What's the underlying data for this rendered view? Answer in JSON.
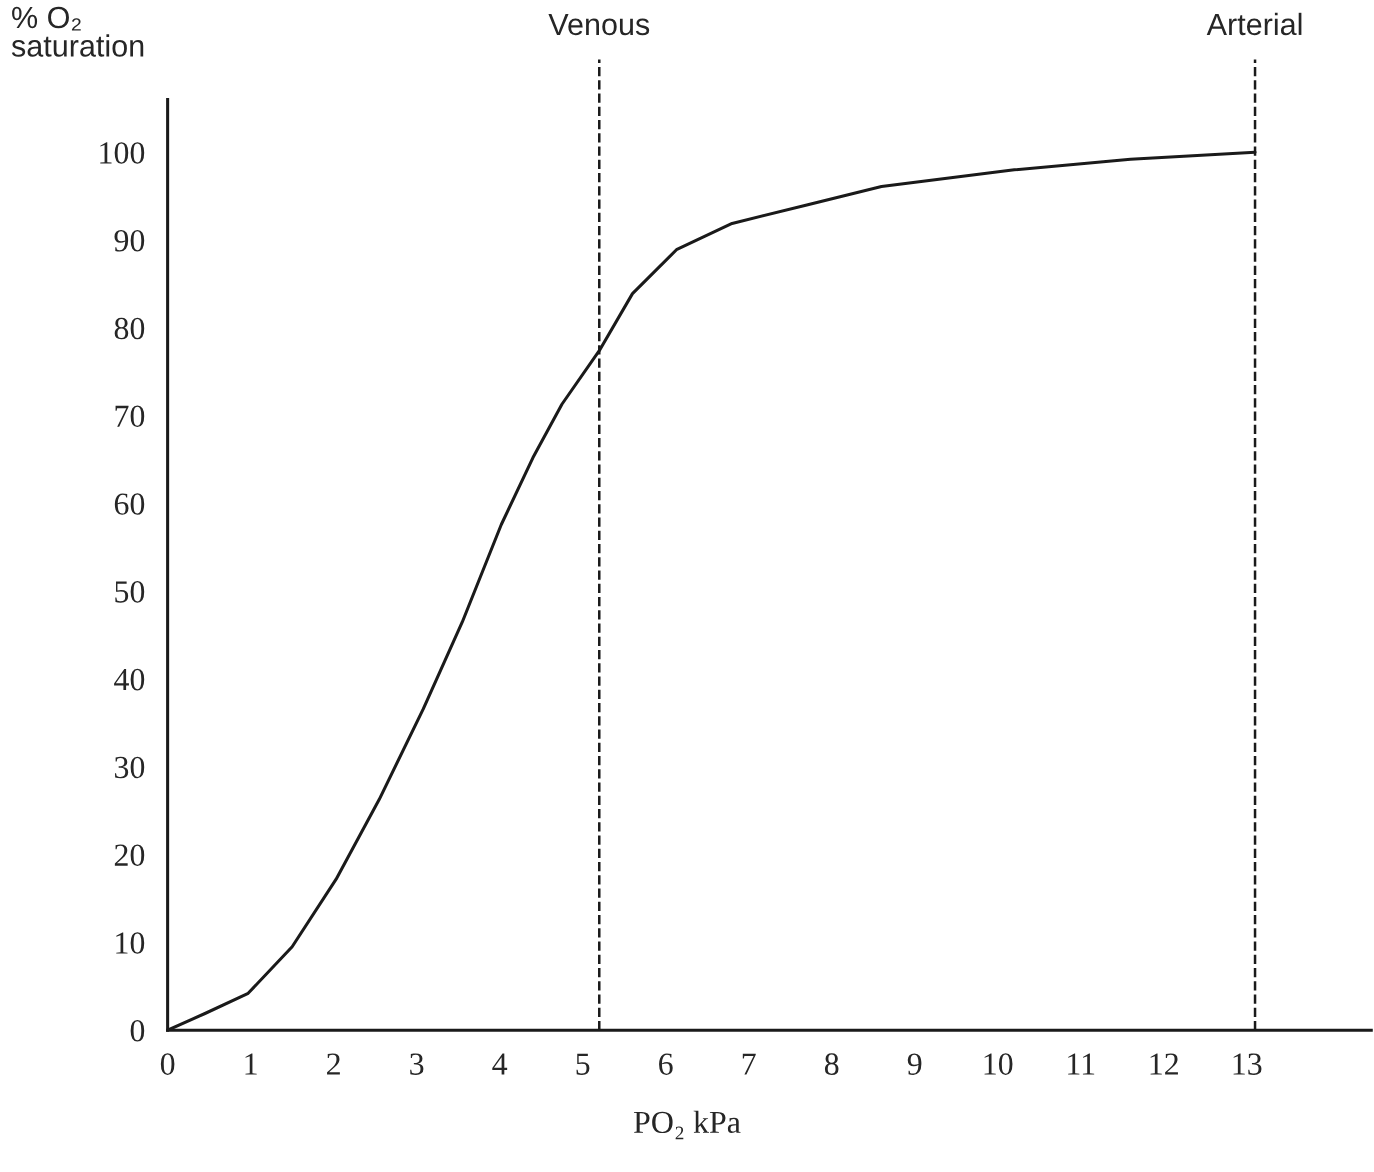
{
  "chart_data": {
    "type": "line",
    "ylabel": "% O₂\nsaturation",
    "xlabel": "PO₂ kPa",
    "series": [
      {
        "color": "#1a1a1a",
        "x": [
          0,
          0.45,
          0.97,
          1.5,
          2.03,
          2.55,
          3.08,
          3.55,
          4.02,
          4.4,
          4.75,
          5.2,
          5.6,
          6.13,
          6.8,
          7.7,
          8.6,
          10.2,
          11.6,
          13.1
        ],
        "values": [
          0,
          1.9,
          4.2,
          9.5,
          17.2,
          26.3,
          36.6,
          46.5,
          57.6,
          65.2,
          71.3,
          77.4,
          83.9,
          88.9,
          91.9,
          94,
          96.1,
          98,
          99.2,
          100
        ]
      }
    ],
    "xlim": [
      0,
      14.5
    ],
    "ylim": [
      0,
      106
    ],
    "xticks": [
      0,
      1,
      2,
      3,
      4,
      5,
      6,
      7,
      8,
      9,
      10,
      11,
      12,
      13
    ],
    "yticks": [
      0,
      10,
      20,
      30,
      40,
      50,
      60,
      70,
      80,
      90,
      100
    ],
    "ref_lines": [
      {
        "axis": "x",
        "value": 5.2,
        "label": "Venous",
        "line_style": "dashed",
        "color": "#1a1a1a"
      },
      {
        "axis": "x",
        "value": 13.1,
        "label": "Arterial",
        "line_style": "dashed",
        "color": "#1a1a1a"
      }
    ],
    "grid": false,
    "legend": false,
    "marker": "none",
    "line_style": "solid"
  }
}
